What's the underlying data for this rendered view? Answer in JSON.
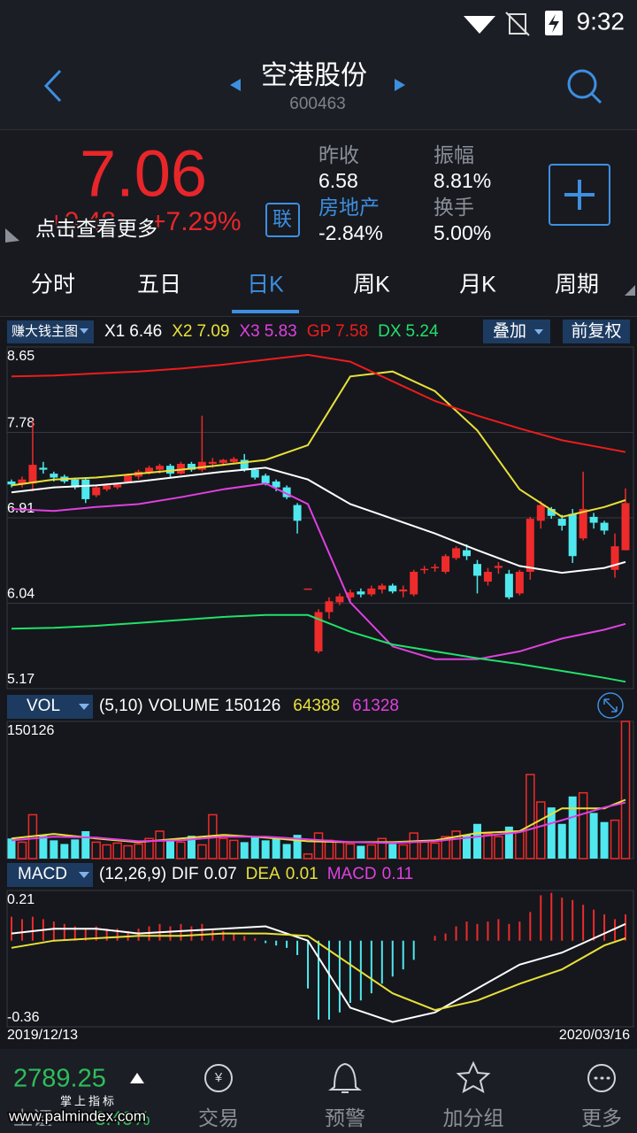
{
  "status_bar": {
    "time": "9:32"
  },
  "header": {
    "title": "空港股份",
    "code": "600463"
  },
  "quote": {
    "price": 7.06,
    "change": "+0.48",
    "change_percent": "+7.29%",
    "hint": "点击查看更多",
    "link_button": "联",
    "stats": [
      {
        "label": "昨收",
        "value": "6.58"
      },
      {
        "label": "振幅",
        "value": "8.81%"
      },
      {
        "label": "房地产",
        "value": "-2.84%"
      },
      {
        "label": "换手",
        "value": "5.00%"
      }
    ]
  },
  "tabs": {
    "items": [
      "分时",
      "五日",
      "日K",
      "周K",
      "月K",
      "周期"
    ],
    "active": 2
  },
  "toolbar": {
    "indicator": "赚大钱主图",
    "overlay": "叠加",
    "adjust": "前复权"
  },
  "chart_data": [
    {
      "type": "candlestick",
      "ylim": [
        5.17,
        8.65
      ],
      "yticks": [
        8.65,
        7.78,
        6.91,
        6.04,
        5.17
      ],
      "grid": true,
      "up_color": "#ee2b2b",
      "down_color": "#4fe8ee",
      "candles": {
        "open": [
          7.28,
          7.25,
          7.26,
          7.42,
          7.36,
          7.33,
          7.3,
          7.3,
          7.14,
          7.2,
          7.22,
          7.28,
          7.33,
          7.37,
          7.4,
          7.44,
          7.36,
          7.46,
          7.4,
          7.46,
          7.47,
          7.48,
          7.5,
          7.4,
          7.34,
          7.28,
          7.22,
          7.04,
          6.19,
          5.55,
          5.95,
          6.05,
          6.1,
          6.16,
          6.13,
          6.18,
          6.22,
          6.16,
          6.13,
          6.38,
          6.4,
          6.36,
          6.5,
          6.58,
          6.44,
          6.26,
          6.4,
          6.34,
          6.14,
          6.36,
          6.88,
          7.0,
          6.9,
          6.95,
          6.7,
          6.92,
          6.86,
          6.38,
          6.58
        ],
        "high": [
          7.3,
          7.33,
          7.9,
          7.48,
          7.38,
          7.35,
          7.32,
          7.32,
          7.24,
          7.26,
          7.27,
          7.36,
          7.4,
          7.44,
          7.46,
          7.46,
          7.48,
          7.48,
          7.95,
          7.52,
          7.51,
          7.53,
          7.56,
          7.42,
          7.36,
          7.3,
          7.24,
          7.06,
          6.19,
          5.98,
          6.1,
          6.14,
          6.18,
          6.19,
          6.22,
          6.24,
          6.24,
          6.22,
          6.38,
          6.42,
          6.44,
          6.54,
          6.62,
          6.64,
          6.48,
          6.4,
          6.46,
          6.38,
          6.38,
          6.92,
          7.08,
          7.02,
          6.94,
          7.0,
          7.38,
          6.96,
          6.88,
          6.75,
          7.21
        ],
        "low": [
          7.22,
          7.22,
          7.18,
          7.36,
          7.28,
          7.26,
          7.2,
          7.06,
          7.12,
          7.18,
          7.2,
          7.26,
          7.3,
          7.35,
          7.36,
          7.32,
          7.35,
          7.38,
          7.38,
          7.42,
          7.44,
          7.46,
          7.38,
          7.3,
          7.24,
          7.18,
          7.1,
          6.75,
          6.19,
          5.53,
          5.88,
          6.02,
          6.06,
          6.1,
          6.11,
          6.14,
          6.14,
          6.1,
          6.11,
          6.34,
          6.36,
          6.34,
          6.48,
          6.48,
          6.14,
          6.22,
          6.34,
          6.08,
          6.12,
          6.28,
          6.8,
          6.9,
          6.78,
          6.45,
          6.68,
          6.8,
          6.74,
          6.3,
          6.58
        ],
        "close": [
          7.25,
          7.3,
          7.45,
          7.4,
          7.32,
          7.28,
          7.22,
          7.1,
          7.22,
          7.24,
          7.25,
          7.34,
          7.38,
          7.42,
          7.44,
          7.36,
          7.46,
          7.4,
          7.48,
          7.48,
          7.5,
          7.51,
          7.4,
          7.32,
          7.26,
          7.22,
          7.12,
          6.88,
          6.19,
          5.95,
          6.06,
          6.11,
          6.15,
          6.13,
          6.19,
          6.22,
          6.16,
          6.18,
          6.36,
          6.39,
          6.41,
          6.52,
          6.6,
          6.52,
          6.32,
          6.36,
          6.42,
          6.1,
          6.36,
          6.9,
          7.04,
          6.93,
          6.83,
          6.52,
          7.0,
          6.86,
          6.78,
          6.62,
          7.06
        ]
      },
      "series": [
        {
          "name": "X1",
          "color": "#ffffff",
          "x": [
            0,
            4,
            8,
            12,
            16,
            20,
            24,
            28,
            32,
            36,
            40,
            44,
            48,
            52,
            56,
            58
          ],
          "values": [
            7.17,
            7.22,
            7.24,
            7.28,
            7.33,
            7.38,
            7.42,
            7.3,
            7.05,
            6.9,
            6.75,
            6.58,
            6.42,
            6.35,
            6.4,
            6.46
          ]
        },
        {
          "name": "X2",
          "color": "#e8e03a",
          "x": [
            0,
            4,
            8,
            12,
            16,
            20,
            24,
            28,
            32,
            36,
            40,
            44,
            48,
            52,
            56,
            58
          ],
          "values": [
            7.24,
            7.3,
            7.32,
            7.36,
            7.4,
            7.45,
            7.5,
            7.65,
            8.35,
            8.4,
            8.2,
            7.8,
            7.2,
            6.92,
            7.02,
            7.09
          ]
        },
        {
          "name": "X3",
          "color": "#e040e0",
          "x": [
            0,
            4,
            8,
            12,
            16,
            20,
            24,
            28,
            32,
            36,
            40,
            44,
            48,
            52,
            56,
            58
          ],
          "values": [
            7.0,
            6.98,
            7.02,
            7.05,
            7.12,
            7.2,
            7.26,
            7.05,
            6.05,
            5.6,
            5.47,
            5.47,
            5.55,
            5.68,
            5.77,
            5.83
          ]
        },
        {
          "name": "GP",
          "color": "#ee1c1c",
          "x": [
            0,
            4,
            8,
            12,
            16,
            20,
            24,
            28,
            32,
            36,
            40,
            44,
            48,
            52,
            56,
            58
          ],
          "values": [
            8.35,
            8.36,
            8.38,
            8.4,
            8.43,
            8.47,
            8.52,
            8.57,
            8.5,
            8.3,
            8.1,
            7.95,
            7.82,
            7.7,
            7.62,
            7.58
          ]
        },
        {
          "name": "DX",
          "color": "#22e06a",
          "x": [
            0,
            4,
            8,
            12,
            16,
            20,
            24,
            28,
            32,
            36,
            40,
            44,
            48,
            52,
            56,
            58
          ],
          "values": [
            5.78,
            5.79,
            5.81,
            5.84,
            5.87,
            5.9,
            5.92,
            5.92,
            5.75,
            5.62,
            5.55,
            5.48,
            5.42,
            5.35,
            5.28,
            5.24
          ]
        }
      ]
    },
    {
      "type": "volume",
      "name": "VOL",
      "params": "(5,10)",
      "value_name": "VOLUME",
      "ylim": [
        0,
        150126
      ],
      "yticks": [
        150126
      ],
      "grid": false,
      "up_color": "#ee2b2b",
      "down_color": "#4fe8ee",
      "values": [
        22000,
        18000,
        48000,
        25000,
        20000,
        16000,
        21000,
        30000,
        18000,
        15000,
        17000,
        14000,
        16000,
        22000,
        30000,
        20000,
        18000,
        25000,
        15000,
        48000,
        22000,
        20000,
        18000,
        24000,
        20000,
        22000,
        16000,
        26000,
        5000,
        28000,
        20000,
        18000,
        16000,
        14000,
        15000,
        22000,
        16000,
        15000,
        28000,
        18000,
        17000,
        24000,
        30000,
        26000,
        38000,
        27000,
        24000,
        35000,
        30000,
        92000,
        62000,
        56000,
        38000,
        68000,
        72000,
        50000,
        40000,
        42000,
        150126
      ],
      "series": [
        {
          "color": "#e8e03a",
          "x": [
            0,
            4,
            8,
            12,
            16,
            20,
            24,
            28,
            32,
            36,
            40,
            44,
            48,
            52,
            56,
            58
          ],
          "values": [
            22000,
            27000,
            22000,
            18000,
            22000,
            26000,
            23000,
            19000,
            18000,
            18000,
            20000,
            28000,
            30000,
            55000,
            55000,
            64388
          ]
        },
        {
          "color": "#e040e0",
          "x": [
            0,
            4,
            8,
            12,
            16,
            20,
            24,
            28,
            32,
            36,
            40,
            44,
            48,
            52,
            56,
            58
          ],
          "values": [
            20000,
            24000,
            23000,
            19000,
            20000,
            24000,
            24000,
            21000,
            18000,
            17000,
            19000,
            24000,
            29000,
            42000,
            56000,
            61328
          ]
        }
      ]
    },
    {
      "type": "macd",
      "name": "MACD",
      "params": "(12,26,9)",
      "ylim": [
        -0.36,
        0.21
      ],
      "yticks": [
        0.21,
        -0.36
      ],
      "grid": false,
      "bars": {
        "name": "MACD",
        "legend_color": "#e040e0",
        "up_color": "#ee2b2b",
        "down_color": "#4fe8ee",
        "values": [
          0.1,
          0.09,
          0.1,
          0.09,
          0.08,
          0.07,
          0.06,
          0.05,
          0.06,
          0.05,
          0.05,
          0.04,
          0.05,
          0.06,
          0.07,
          0.06,
          0.07,
          0.06,
          0.07,
          0.05,
          0.04,
          0.03,
          0.02,
          0.01,
          -0.01,
          -0.02,
          -0.03,
          -0.06,
          -0.2,
          -0.33,
          -0.33,
          -0.3,
          -0.26,
          -0.25,
          -0.22,
          -0.18,
          -0.15,
          -0.12,
          -0.08,
          0,
          0.02,
          0.03,
          0.06,
          0.08,
          0.07,
          0.08,
          0.09,
          0.07,
          0.08,
          0.12,
          0.19,
          0.2,
          0.18,
          0.17,
          0.15,
          0.13,
          0.11,
          0.09,
          0.11
        ]
      },
      "series": [
        {
          "name": "DIF",
          "color": "#ffffff",
          "x": [
            0,
            4,
            8,
            12,
            16,
            20,
            24,
            28,
            32,
            36,
            40,
            44,
            48,
            52,
            56,
            58
          ],
          "values": [
            0.03,
            0.05,
            0.05,
            0.03,
            0.04,
            0.05,
            0.06,
            0,
            -0.28,
            -0.34,
            -0.3,
            -0.2,
            -0.1,
            -0.05,
            0.03,
            0.07
          ]
        },
        {
          "name": "DEA",
          "color": "#e8e03a",
          "x": [
            0,
            4,
            8,
            12,
            16,
            20,
            24,
            28,
            32,
            36,
            40,
            44,
            48,
            52,
            56,
            58
          ],
          "values": [
            -0.03,
            0,
            0.01,
            0.02,
            0.02,
            0.03,
            0.03,
            0.02,
            -0.1,
            -0.22,
            -0.29,
            -0.25,
            -0.18,
            -0.12,
            -0.02,
            0.01
          ]
        }
      ],
      "x_labels": [
        "2019/12/13",
        "2020/03/16"
      ]
    }
  ],
  "footer": {
    "index_value": "2789.25",
    "index_name": "上证",
    "index_change": "-3.40%",
    "watermark_title": "掌上指标",
    "watermark_url": "www.palmindex.com",
    "nav": [
      "交易",
      "预警",
      "加分组",
      "更多"
    ]
  }
}
